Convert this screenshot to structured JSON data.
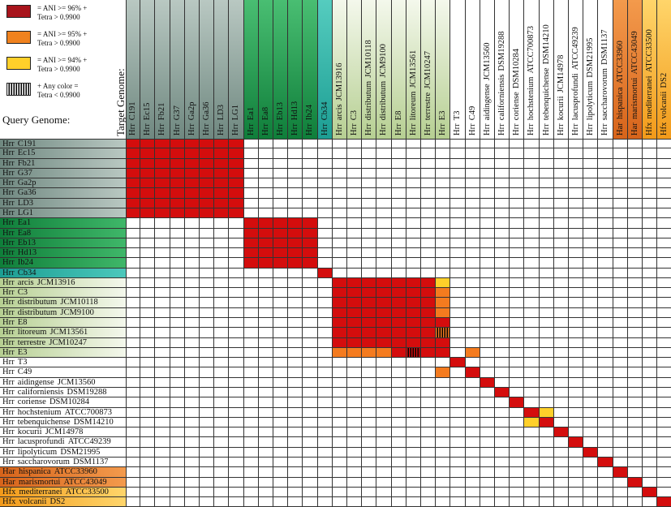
{
  "legend": [
    {
      "color": "#a8141c",
      "text": "= ANI >= 96% +\nTetra > 0.9900"
    },
    {
      "color": "#f0821e",
      "text": "= ANI >= 95% +\nTetra > 0.9900"
    },
    {
      "color": "#ffd02a",
      "text": "= ANI >= 94% +\nTetra > 0.9900"
    },
    {
      "color": "hatch",
      "text": "+ Any color =\nTetra < 0.9900"
    }
  ],
  "target_title": "Target Genome:",
  "query_title": "Query Genome:",
  "colors": {
    "red": "#d40d0d",
    "orange": "#f47b1f",
    "yellow": "#ffd02a",
    "group_gray": "#8fa39a",
    "group_green": "#1fa04c",
    "group_teal": "#2bb3a6",
    "group_lightgreen": "#cfe0b4",
    "group_orange": "#e8792c",
    "group_amber": "#f7b22c"
  },
  "genomes": [
    {
      "label": "Hrr_C191",
      "group": "gray"
    },
    {
      "label": "Hrr_Ec15",
      "group": "gray"
    },
    {
      "label": "Hrr_Fb21",
      "group": "gray"
    },
    {
      "label": "Hrr_G37",
      "group": "gray"
    },
    {
      "label": "Hrr_Ga2p",
      "group": "gray"
    },
    {
      "label": "Hrr_Ga36",
      "group": "gray"
    },
    {
      "label": "Hrr_LD3",
      "group": "gray"
    },
    {
      "label": "Hrr_LG1",
      "group": "gray"
    },
    {
      "label": "Hrr_Ea1",
      "group": "green"
    },
    {
      "label": "Hrr_Ea8",
      "group": "green"
    },
    {
      "label": "Hrr_Eb13",
      "group": "green"
    },
    {
      "label": "Hrr_Hd13",
      "group": "green"
    },
    {
      "label": "Hrr_Ib24",
      "group": "green"
    },
    {
      "label": "Hrr_Cb34",
      "group": "teal"
    },
    {
      "label": "Hrr_arcis_JCM13916",
      "group": "lightgreen"
    },
    {
      "label": "Hrr_C3",
      "group": "lightgreen"
    },
    {
      "label": "Hrr_distributum_JCM10118",
      "group": "lightgreen"
    },
    {
      "label": "Hrr_distributum_JCM9100",
      "group": "lightgreen"
    },
    {
      "label": "Hrr_E8",
      "group": "lightgreen"
    },
    {
      "label": "Hrr_litoreum_JCM13561",
      "group": "lightgreen"
    },
    {
      "label": "Hrr_terrestre_JCM10247",
      "group": "lightgreen"
    },
    {
      "label": "Hrr_E3",
      "group": "lightgreen"
    },
    {
      "label": "Hrr_T3",
      "group": "none"
    },
    {
      "label": "Hrr_C49",
      "group": "none"
    },
    {
      "label": "Hrr_aidingense_JCM13560",
      "group": "none"
    },
    {
      "label": "Hrr_californiensis_DSM19288",
      "group": "none"
    },
    {
      "label": "Hrr_coriense_DSM10284",
      "group": "none"
    },
    {
      "label": "Hrr_hochstenium_ATCC700873",
      "group": "none"
    },
    {
      "label": "Hrr_tebenquichense_DSM14210",
      "group": "none"
    },
    {
      "label": "Hrr_kocurii_JCM14978",
      "group": "none"
    },
    {
      "label": "Hrr_lacusprofundi_ATCC49239",
      "group": "none"
    },
    {
      "label": "Hrr_lipolyticum_DSM21995",
      "group": "none"
    },
    {
      "label": "Hrr_saccharovorum_DSM1137",
      "group": "none"
    },
    {
      "label": "Har_hispanica_ATCC33960",
      "group": "orange"
    },
    {
      "label": "Har_marismortui_ATCC43049",
      "group": "orange"
    },
    {
      "label": "Hfx_mediterranei_ATCC33500",
      "group": "amber"
    },
    {
      "label": "Hfx_volcanii_DS2",
      "group": "amber"
    }
  ],
  "cells": [
    {
      "rows": [
        0,
        7
      ],
      "cols": [
        0,
        7
      ],
      "color": "red"
    },
    {
      "rows": [
        8,
        12
      ],
      "cols": [
        8,
        12
      ],
      "color": "red"
    },
    {
      "rows": [
        13,
        13
      ],
      "cols": [
        13,
        13
      ],
      "color": "red"
    },
    {
      "rows": [
        14,
        20
      ],
      "cols": [
        14,
        20
      ],
      "color": "red"
    },
    {
      "rows": [
        14,
        14
      ],
      "cols": [
        21,
        21
      ],
      "color": "yellow"
    },
    {
      "rows": [
        15,
        20
      ],
      "cols": [
        21,
        21
      ],
      "color": "orange"
    },
    {
      "rows": [
        18,
        18
      ],
      "cols": [
        21,
        21
      ],
      "color": "red"
    },
    {
      "rows": [
        19,
        19
      ],
      "cols": [
        21,
        21
      ],
      "color": "orange",
      "hatch": true
    },
    {
      "rows": [
        20,
        20
      ],
      "cols": [
        21,
        21
      ],
      "color": "red"
    },
    {
      "rows": [
        21,
        21
      ],
      "cols": [
        14,
        17
      ],
      "color": "orange"
    },
    {
      "rows": [
        21,
        21
      ],
      "cols": [
        18,
        20
      ],
      "color": "red"
    },
    {
      "rows": [
        21,
        21
      ],
      "cols": [
        19,
        19
      ],
      "color": "red",
      "hatch": true
    },
    {
      "rows": [
        21,
        21
      ],
      "cols": [
        21,
        21
      ],
      "color": "red"
    },
    {
      "rows": [
        21,
        21
      ],
      "cols": [
        23,
        23
      ],
      "color": "orange"
    },
    {
      "rows": [
        22,
        22
      ],
      "cols": [
        22,
        22
      ],
      "color": "red"
    },
    {
      "rows": [
        23,
        23
      ],
      "cols": [
        21,
        21
      ],
      "color": "orange"
    },
    {
      "rows": [
        23,
        23
      ],
      "cols": [
        23,
        23
      ],
      "color": "red"
    },
    {
      "rows": [
        24,
        24
      ],
      "cols": [
        24,
        24
      ],
      "color": "red"
    },
    {
      "rows": [
        25,
        25
      ],
      "cols": [
        25,
        25
      ],
      "color": "red"
    },
    {
      "rows": [
        26,
        26
      ],
      "cols": [
        26,
        26
      ],
      "color": "red"
    },
    {
      "rows": [
        27,
        27
      ],
      "cols": [
        27,
        27
      ],
      "color": "red"
    },
    {
      "rows": [
        27,
        27
      ],
      "cols": [
        28,
        28
      ],
      "color": "yellow"
    },
    {
      "rows": [
        28,
        28
      ],
      "cols": [
        27,
        27
      ],
      "color": "yellow"
    },
    {
      "rows": [
        28,
        28
      ],
      "cols": [
        28,
        28
      ],
      "color": "red"
    },
    {
      "rows": [
        29,
        29
      ],
      "cols": [
        29,
        29
      ],
      "color": "red"
    },
    {
      "rows": [
        30,
        30
      ],
      "cols": [
        30,
        30
      ],
      "color": "red"
    },
    {
      "rows": [
        31,
        31
      ],
      "cols": [
        31,
        31
      ],
      "color": "red"
    },
    {
      "rows": [
        32,
        32
      ],
      "cols": [
        32,
        32
      ],
      "color": "red"
    },
    {
      "rows": [
        33,
        33
      ],
      "cols": [
        33,
        33
      ],
      "color": "red"
    },
    {
      "rows": [
        34,
        34
      ],
      "cols": [
        34,
        34
      ],
      "color": "red"
    },
    {
      "rows": [
        35,
        35
      ],
      "cols": [
        35,
        35
      ],
      "color": "red"
    },
    {
      "rows": [
        36,
        36
      ],
      "cols": [
        36,
        36
      ],
      "color": "red"
    }
  ]
}
